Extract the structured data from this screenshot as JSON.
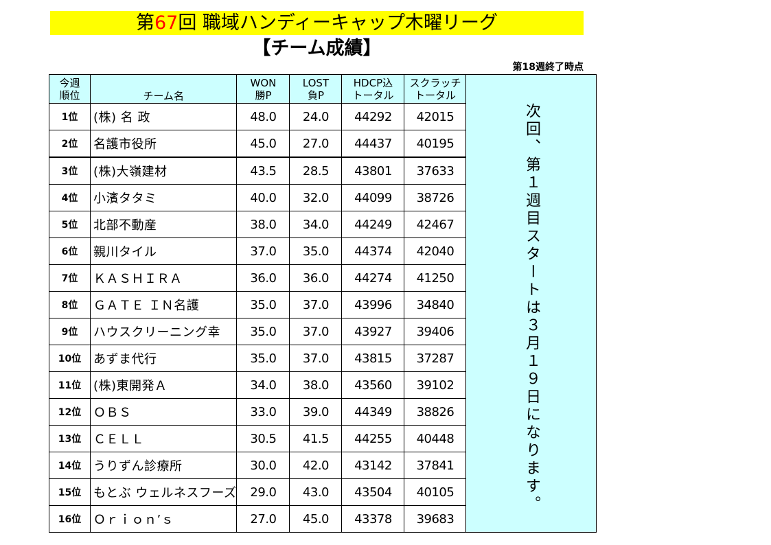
{
  "title": {
    "prefix": "第",
    "number": "67",
    "suffix": "回 職域ハンディーキャップ木曜リーグ"
  },
  "subtitle": "【チーム成績】",
  "status": "第18週終了時点",
  "headers": {
    "rank_line1": "今週",
    "rank_line2": "順位",
    "team": "チーム名",
    "won_line1": "WON",
    "won_line2": "勝P",
    "lost_line1": "LOST",
    "lost_line2": "負P",
    "hdcp_line1": "HDCP込",
    "hdcp_line2": "トータル",
    "scratch_line1": "スクラッチ",
    "scratch_line2": "トータル"
  },
  "rows": [
    {
      "rank": "1位",
      "team": "(株) 名 政",
      "won": "48.0",
      "lost": "24.0",
      "hdcp": "44292",
      "scratch": "42015"
    },
    {
      "rank": "2位",
      "team": "名護市役所",
      "won": "45.0",
      "lost": "27.0",
      "hdcp": "44437",
      "scratch": "40195"
    },
    {
      "rank": "3位",
      "team": "(株)大嶺建材",
      "won": "43.5",
      "lost": "28.5",
      "hdcp": "43801",
      "scratch": "37633"
    },
    {
      "rank": "4位",
      "team": "小濱タタミ",
      "won": "40.0",
      "lost": "32.0",
      "hdcp": "44099",
      "scratch": "38726"
    },
    {
      "rank": "5位",
      "team": "北部不動産",
      "won": "38.0",
      "lost": "34.0",
      "hdcp": "44249",
      "scratch": "42467"
    },
    {
      "rank": "6位",
      "team": "親川タイル",
      "won": "37.0",
      "lost": "35.0",
      "hdcp": "44374",
      "scratch": "42040"
    },
    {
      "rank": "7位",
      "team": "ＫＡＳＨＩＲＡ",
      "won": "36.0",
      "lost": "36.0",
      "hdcp": "44274",
      "scratch": "41250"
    },
    {
      "rank": "8位",
      "team": "ＧＡＴＥ ＩＮ名護",
      "won": "35.0",
      "lost": "37.0",
      "hdcp": "43996",
      "scratch": "34840"
    },
    {
      "rank": "9位",
      "team": "ハウスクリーニング幸",
      "won": "35.0",
      "lost": "37.0",
      "hdcp": "43927",
      "scratch": "39406"
    },
    {
      "rank": "10位",
      "team": "あずま代行",
      "won": "35.0",
      "lost": "37.0",
      "hdcp": "43815",
      "scratch": "37287"
    },
    {
      "rank": "11位",
      "team": "(株)東開発Ａ",
      "won": "34.0",
      "lost": "38.0",
      "hdcp": "43560",
      "scratch": "39102"
    },
    {
      "rank": "12位",
      "team": "ＯＢＳ",
      "won": "33.0",
      "lost": "39.0",
      "hdcp": "44349",
      "scratch": "38826"
    },
    {
      "rank": "13位",
      "team": "ＣＥＬＬ",
      "won": "30.5",
      "lost": "41.5",
      "hdcp": "44255",
      "scratch": "40448"
    },
    {
      "rank": "14位",
      "team": "うりずん診療所",
      "won": "30.0",
      "lost": "42.0",
      "hdcp": "43142",
      "scratch": "37841"
    },
    {
      "rank": "15位",
      "team": "もとぶ ウェルネスフーズ",
      "won": "29.0",
      "lost": "43.0",
      "hdcp": "43504",
      "scratch": "40105"
    },
    {
      "rank": "16位",
      "team": "Ｏｒｉｏｎ’ｓ",
      "won": "27.0",
      "lost": "45.0",
      "hdcp": "43378",
      "scratch": "39683"
    }
  ],
  "notice": "次回、第１週目スタートは３月１９日になります。",
  "colors": {
    "title_bg": "#ffff00",
    "title_number": "#ff0000",
    "header_bg": "#ccffff"
  }
}
